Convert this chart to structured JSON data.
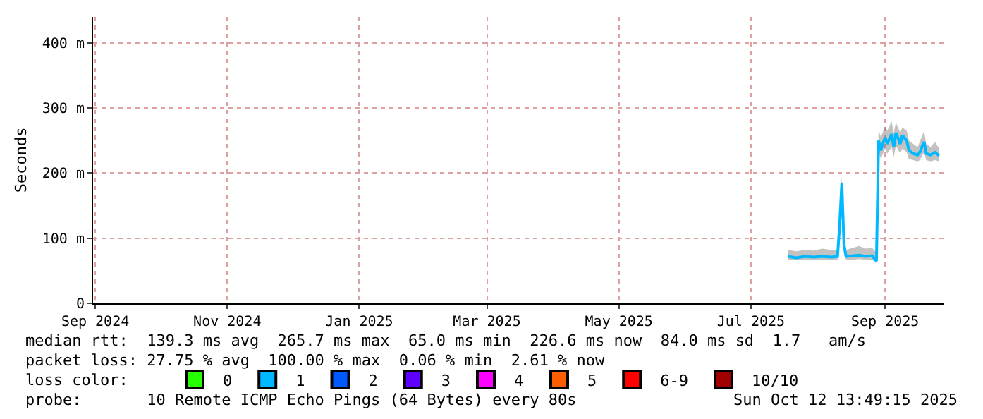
{
  "chart_data": {
    "type": "line",
    "ylabel": "Seconds",
    "xlim": [
      "2024-08-31",
      "2025-09-28"
    ],
    "xticks": [
      {
        "value": "2024-09-01",
        "label": "Sep 2024"
      },
      {
        "value": "2024-11-01",
        "label": "Nov 2024"
      },
      {
        "value": "2025-01-01",
        "label": "Jan 2025"
      },
      {
        "value": "2025-03-01",
        "label": "Mar 2025"
      },
      {
        "value": "2025-05-01",
        "label": "May 2025"
      },
      {
        "value": "2025-07-01",
        "label": "Jul 2025"
      },
      {
        "value": "2025-09-01",
        "label": "Sep 2025"
      }
    ],
    "ylim": [
      0,
      440
    ],
    "yticks": [
      0,
      {
        "value": 100,
        "label": "100 m"
      },
      {
        "value": 200,
        "label": "200 m"
      },
      {
        "value": 300,
        "label": "300 m"
      },
      {
        "value": 400,
        "label": "400 m"
      }
    ],
    "grid": true,
    "legend": "bottom",
    "marker": "none",
    "line_style": "solid",
    "series": [
      {
        "name": "0",
        "color": "#26ff00"
      },
      {
        "name": "1",
        "color": "#00b8ff",
        "x": [
          "2025-07-18",
          "2025-07-22",
          "2025-07-26",
          "2025-07-30",
          "2025-08-03",
          "2025-08-07",
          "2025-08-10",
          "2025-08-11",
          "2025-08-12",
          "2025-08-13",
          "2025-08-14",
          "2025-08-17",
          "2025-08-20",
          "2025-08-23",
          "2025-08-26",
          "2025-08-28",
          "2025-08-29",
          "2025-08-30",
          "2025-09-01",
          "2025-09-02",
          "2025-09-04",
          "2025-09-05",
          "2025-09-06",
          "2025-09-08",
          "2025-09-09",
          "2025-09-11",
          "2025-09-12",
          "2025-09-14",
          "2025-09-16",
          "2025-09-17",
          "2025-09-19",
          "2025-09-20",
          "2025-09-22",
          "2025-09-24",
          "2025-09-26"
        ],
        "values": [
          72,
          70,
          72,
          71,
          72,
          71,
          72,
          120,
          185,
          90,
          72,
          73,
          74,
          72,
          73,
          65,
          250,
          235,
          255,
          245,
          260,
          240,
          262,
          245,
          258,
          250,
          235,
          230,
          228,
          232,
          248,
          230,
          228,
          232,
          227
        ],
        "lower": [
          66,
          66,
          67,
          66,
          67,
          66,
          67,
          100,
          160,
          75,
          67,
          67,
          68,
          67,
          67,
          62,
          235,
          222,
          238,
          230,
          240,
          225,
          242,
          230,
          238,
          232,
          222,
          220,
          218,
          220,
          232,
          220,
          218,
          220,
          218
        ],
        "upper": [
          82,
          80,
          82,
          81,
          84,
          82,
          82,
          140,
          195,
          105,
          82,
          85,
          88,
          84,
          85,
          78,
          268,
          255,
          272,
          265,
          280,
          262,
          278,
          262,
          270,
          265,
          250,
          245,
          240,
          248,
          265,
          245,
          240,
          248,
          238
        ]
      },
      {
        "name": "2",
        "color": "#0059ff"
      },
      {
        "name": "3",
        "color": "#5e00ff"
      },
      {
        "name": "4",
        "color": "#ff00ff"
      },
      {
        "name": "5",
        "color": "#ff5e00"
      },
      {
        "name": "6-9",
        "color": "#ff0000"
      },
      {
        "name": "10/10",
        "color": "#a10000"
      }
    ],
    "annotations": [
      "median rtt:  139.3 ms avg  265.7 ms max  65.0 ms min  226.6 ms now  84.0 ms sd  1.7   am/s",
      "packet loss: 27.75 % avg  100.00 % max  0.06 % min  2.61 % now",
      "loss color:",
      "probe:       10 Remote ICMP Echo Pings (64 Bytes) every 80s",
      "Sun Oct 12 13:49:15 2025"
    ]
  }
}
